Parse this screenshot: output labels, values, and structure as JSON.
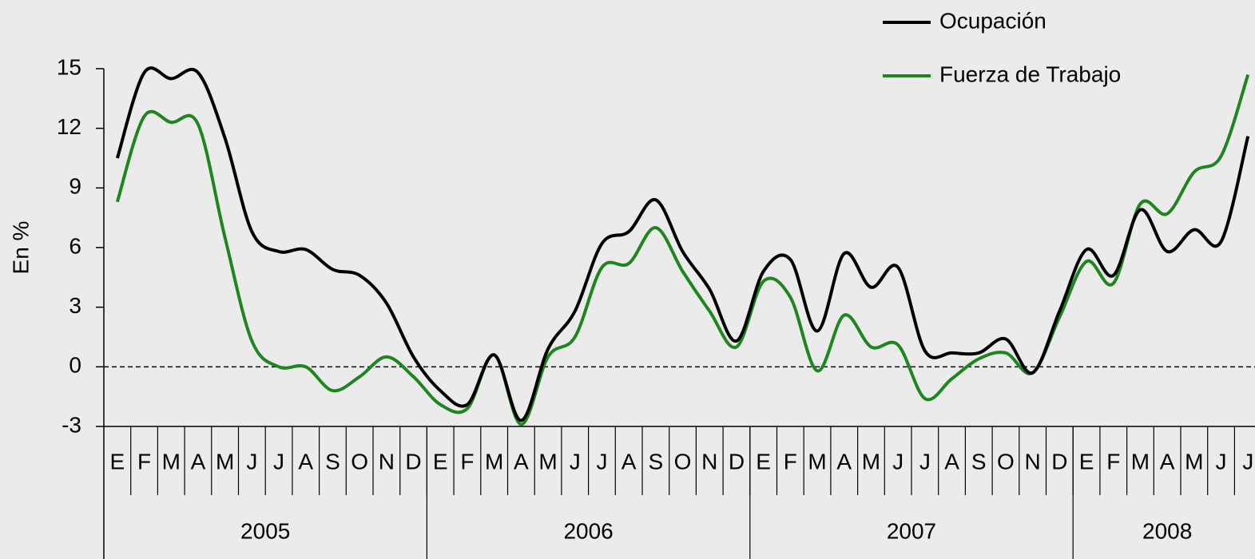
{
  "chart_data": {
    "type": "line",
    "y_label": "En %",
    "ylim": [
      -3,
      15
    ],
    "yticks": [
      -3,
      0,
      3,
      6,
      9,
      12,
      15
    ],
    "reference_line": 0,
    "legend": "top-right",
    "groups": [
      {
        "label": "2005",
        "categories": [
          "E",
          "F",
          "M",
          "A",
          "M",
          "J",
          "J",
          "A",
          "S",
          "O",
          "N",
          "D"
        ]
      },
      {
        "label": "2006",
        "categories": [
          "E",
          "F",
          "M",
          "A",
          "M",
          "J",
          "J",
          "A",
          "S",
          "O",
          "N",
          "D"
        ]
      },
      {
        "label": "2007",
        "categories": [
          "E",
          "F",
          "M",
          "A",
          "M",
          "J",
          "J",
          "A",
          "S",
          "O",
          "N",
          "D"
        ]
      },
      {
        "label": "2008",
        "categories": [
          "E",
          "F",
          "M",
          "A",
          "M",
          "J",
          "J"
        ]
      }
    ],
    "series": [
      {
        "name": "Ocupación",
        "color": "#000000",
        "values": [
          10.5,
          14.8,
          14.5,
          14.8,
          11.5,
          6.8,
          5.8,
          5.9,
          4.9,
          4.6,
          3.2,
          0.5,
          -1.2,
          -1.9,
          0.6,
          -2.7,
          0.9,
          2.8,
          6.2,
          6.8,
          8.4,
          5.8,
          3.9,
          1.3,
          4.8,
          5.4,
          1.8,
          5.7,
          4.0,
          5.0,
          0.8,
          0.7,
          0.7,
          1.4,
          -0.3,
          2.8,
          5.9,
          4.6,
          7.9,
          5.8,
          6.9,
          6.3,
          11.6
        ]
      },
      {
        "name": "Fuerza de Trabajo",
        "color": "#1e861e",
        "values": [
          8.3,
          12.6,
          12.3,
          12.2,
          6.5,
          1.3,
          0.0,
          0.0,
          -1.2,
          -0.5,
          0.5,
          -0.5,
          -1.9,
          -2.1,
          0.6,
          -2.9,
          0.5,
          1.5,
          5.0,
          5.2,
          7.0,
          4.8,
          2.8,
          1.0,
          4.3,
          3.5,
          -0.2,
          2.6,
          1.0,
          1.1,
          -1.6,
          -0.6,
          0.4,
          0.7,
          -0.3,
          2.5,
          5.3,
          4.2,
          8.2,
          7.7,
          9.8,
          10.6,
          14.7
        ]
      }
    ]
  }
}
